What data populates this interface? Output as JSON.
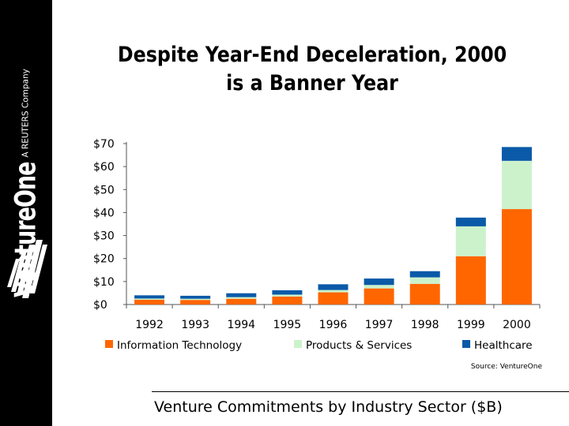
{
  "brand": {
    "name": "VentureOne",
    "tagline": "A REUTERS Company"
  },
  "slide": {
    "title_line1": "Despite Year-End Deceleration, 2000",
    "title_line2": "is a Banner Year",
    "caption": "Venture Commitments by Industry Sector ($B)"
  },
  "chart_data": {
    "type": "bar",
    "stacked": true,
    "categories": [
      "1992",
      "1993",
      "1994",
      "1995",
      "1996",
      "1997",
      "1998",
      "1999",
      "2000"
    ],
    "series": [
      {
        "name": "Information Technology",
        "color": "#ff6600",
        "values": [
          2.1,
          2.0,
          2.5,
          3.5,
          5.3,
          7.0,
          9.0,
          21.0,
          41.5
        ]
      },
      {
        "name": "Products & Services",
        "color": "#ccf2cc",
        "values": [
          0.5,
          0.5,
          0.7,
          0.8,
          1.0,
          1.5,
          2.8,
          13.0,
          21.0
        ]
      },
      {
        "name": "Healthcare",
        "color": "#0a5aa8",
        "values": [
          1.4,
          1.3,
          1.7,
          1.9,
          2.5,
          2.8,
          2.7,
          3.8,
          6.0
        ]
      }
    ],
    "ylim": [
      0,
      70
    ],
    "yticks": [
      "$0",
      "$10",
      "$20",
      "$30",
      "$40",
      "$50",
      "$60",
      "$70"
    ],
    "legend_position": "bottom",
    "source": "Source: VentureOne",
    "grid": false
  }
}
